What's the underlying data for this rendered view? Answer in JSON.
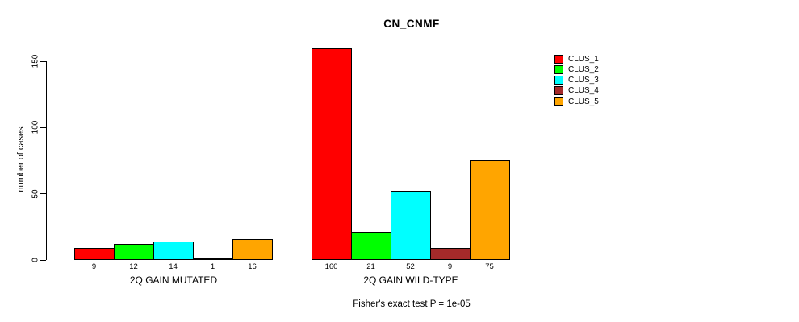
{
  "title": "CN_CNMF",
  "footer": "Fisher's exact test P = 1e-05",
  "y_axis": {
    "label": "number of cases",
    "tick_labels": [
      "0",
      "50",
      "100",
      "150"
    ]
  },
  "legend": {
    "position": "top-right",
    "items": [
      {
        "label": "CLUS_1",
        "color": "#FF0000"
      },
      {
        "label": "CLUS_2",
        "color": "#00FF00"
      },
      {
        "label": "CLUS_3",
        "color": "#00FFFF"
      },
      {
        "label": "CLUS_4",
        "color": "#A52A2A"
      },
      {
        "label": "CLUS_5",
        "color": "#FFA500"
      }
    ]
  },
  "chart_data": {
    "type": "bar",
    "title": "CN_CNMF",
    "xlabel": "",
    "ylabel": "number of cases",
    "ylim": [
      0,
      165
    ],
    "yticks": [
      0,
      50,
      100,
      150
    ],
    "grid": false,
    "legend_position": "top-right",
    "annotation": "Fisher's exact test P = 1e-05",
    "categories": [
      "2Q GAIN MUTATED",
      "2Q GAIN WILD-TYPE"
    ],
    "series": [
      {
        "name": "CLUS_1",
        "color": "#FF0000",
        "values": [
          9,
          160
        ]
      },
      {
        "name": "CLUS_2",
        "color": "#00FF00",
        "values": [
          12,
          21
        ]
      },
      {
        "name": "CLUS_3",
        "color": "#00FFFF",
        "values": [
          14,
          52
        ]
      },
      {
        "name": "CLUS_4",
        "color": "#A52A2A",
        "values": [
          1,
          9
        ]
      },
      {
        "name": "CLUS_5",
        "color": "#FFA500",
        "values": [
          16,
          75
        ]
      }
    ],
    "bar_value_labels": [
      [
        9,
        12,
        14,
        1,
        16
      ],
      [
        160,
        21,
        52,
        9,
        75
      ]
    ]
  }
}
